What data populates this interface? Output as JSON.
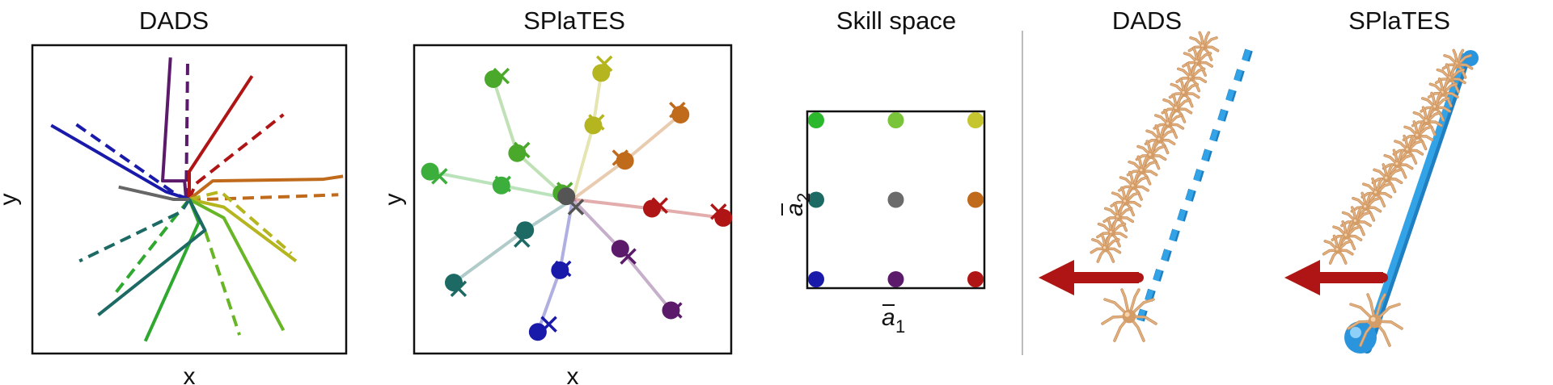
{
  "panels": [
    {
      "title": "DADS",
      "xlabel": "x",
      "ylabel": "y",
      "chart_data": {
        "type": "line",
        "title": "DADS",
        "xlabel": "x",
        "ylabel": "y",
        "xlim": [
          -1,
          1
        ],
        "ylim": [
          -1,
          1
        ],
        "series": [
          {
            "color": "#5c1a6b",
            "style": "solid",
            "points": [
              [
                -0.02,
                0
              ],
              [
                -0.03,
                0.12
              ],
              [
                -0.17,
                0.12
              ],
              [
                -0.12,
                0.92
              ]
            ]
          },
          {
            "color": "#5c1a6b",
            "style": "dashed",
            "points": [
              [
                -0.02,
                0
              ],
              [
                -0.01,
                0.92
              ]
            ]
          },
          {
            "color": "#b01515",
            "style": "solid",
            "points": [
              [
                0,
                0
              ],
              [
                0,
                0.18
              ],
              [
                0.4,
                0.8
              ]
            ]
          },
          {
            "color": "#b01515",
            "style": "dashed",
            "points": [
              [
                0,
                0
              ],
              [
                0.04,
                0.1
              ],
              [
                0.6,
                0.55
              ]
            ]
          },
          {
            "color": "#c06a1c",
            "style": "solid",
            "points": [
              [
                0,
                0
              ],
              [
                0.15,
                0.12
              ],
              [
                0.85,
                0.13
              ],
              [
                0.98,
                0.15
              ]
            ]
          },
          {
            "color": "#c06a1c",
            "style": "dashed",
            "points": [
              [
                0,
                0
              ],
              [
                0.1,
                0
              ],
              [
                0.7,
                0.02
              ],
              [
                0.95,
                0.03
              ]
            ]
          },
          {
            "color": "#b5b520",
            "style": "solid",
            "points": [
              [
                0,
                0
              ],
              [
                0.22,
                -0.05
              ],
              [
                0.68,
                -0.4
              ]
            ]
          },
          {
            "color": "#b5b520",
            "style": "dashed",
            "points": [
              [
                0,
                0
              ],
              [
                0.2,
                0.05
              ],
              [
                0.65,
                -0.35
              ]
            ]
          },
          {
            "color": "#68b525",
            "style": "solid",
            "points": [
              [
                0,
                0
              ],
              [
                0.22,
                -0.12
              ],
              [
                0.6,
                -0.85
              ]
            ]
          },
          {
            "color": "#68b525",
            "style": "dashed",
            "points": [
              [
                0,
                0
              ],
              [
                0.1,
                -0.2
              ],
              [
                0.32,
                -0.88
              ]
            ]
          },
          {
            "color": "#2fa82f",
            "style": "solid",
            "points": [
              [
                0,
                0
              ],
              [
                0.06,
                -0.15
              ],
              [
                -0.28,
                -0.92
              ]
            ]
          },
          {
            "color": "#2fa82f",
            "style": "dashed",
            "points": [
              [
                0,
                0
              ],
              [
                -0.08,
                -0.1
              ],
              [
                -0.48,
                -0.62
              ]
            ]
          },
          {
            "color": "#1d6a64",
            "style": "solid",
            "points": [
              [
                0,
                0
              ],
              [
                0.1,
                -0.2
              ],
              [
                -0.58,
                -0.75
              ]
            ]
          },
          {
            "color": "#1d6a64",
            "style": "dashed",
            "points": [
              [
                0,
                0
              ],
              [
                -0.05,
                -0.08
              ],
              [
                -0.7,
                -0.4
              ]
            ]
          },
          {
            "color": "#1a1aaa",
            "style": "solid",
            "points": [
              [
                0,
                0
              ],
              [
                -0.15,
                0.05
              ],
              [
                -0.88,
                0.48
              ]
            ]
          },
          {
            "color": "#1a1aaa",
            "style": "dashed",
            "points": [
              [
                0,
                0
              ],
              [
                -0.08,
                0.03
              ],
              [
                -0.74,
                0.5
              ]
            ]
          },
          {
            "color": "#666666",
            "style": "solid",
            "points": [
              [
                0,
                0
              ],
              [
                -0.1,
                0
              ],
              [
                -0.45,
                0.08
              ]
            ]
          }
        ]
      }
    },
    {
      "title": "SPlaTES",
      "xlabel": "x",
      "ylabel": "y",
      "chart_data": {
        "type": "scatter",
        "title": "SPlaTES",
        "xlabel": "x",
        "ylabel": "y",
        "xlim": [
          -1,
          1
        ],
        "ylim": [
          -1,
          1
        ],
        "series": [
          {
            "color": "#4aa82a",
            "dots": [
              [
                -0.5,
                0.78
              ],
              [
                -0.35,
                0.3
              ],
              [
                -0.07,
                0.04
              ]
            ],
            "crosses": [
              [
                -0.45,
                0.8
              ],
              [
                -0.32,
                0.32
              ],
              [
                -0.05,
                0.06
              ]
            ]
          },
          {
            "color": "#b5b520",
            "dots": [
              [
                0.18,
                0.82
              ],
              [
                0.13,
                0.48
              ]
            ],
            "crosses": [
              [
                0.2,
                0.88
              ],
              [
                0.15,
                0.5
              ]
            ]
          },
          {
            "color": "#c06a1c",
            "dots": [
              [
                0.68,
                0.55
              ],
              [
                0.33,
                0.25
              ]
            ],
            "crosses": [
              [
                0.66,
                0.58
              ],
              [
                0.3,
                0.27
              ]
            ]
          },
          {
            "color": "#b01515",
            "dots": [
              [
                0.95,
                -0.12
              ],
              [
                0.5,
                -0.06
              ]
            ],
            "crosses": [
              [
                0.92,
                -0.08
              ],
              [
                0.55,
                -0.04
              ]
            ]
          },
          {
            "color": "#5c1a6b",
            "dots": [
              [
                0.62,
                -0.72
              ],
              [
                0.3,
                -0.32
              ]
            ],
            "crosses": [
              [
                0.64,
                -0.72
              ],
              [
                0.35,
                -0.37
              ]
            ]
          },
          {
            "color": "#1a1aaa",
            "dots": [
              [
                -0.22,
                -0.86
              ],
              [
                -0.08,
                -0.46
              ]
            ],
            "crosses": [
              [
                -0.15,
                -0.81
              ],
              [
                -0.06,
                -0.45
              ]
            ]
          },
          {
            "color": "#1d6a64",
            "dots": [
              [
                -0.75,
                -0.54
              ],
              [
                -0.3,
                -0.2
              ]
            ],
            "crosses": [
              [
                -0.72,
                -0.58
              ],
              [
                -0.32,
                -0.26
              ]
            ]
          },
          {
            "color": "#3cae3c",
            "dots": [
              [
                -0.9,
                0.18
              ],
              [
                -0.45,
                0.09
              ]
            ],
            "crosses": [
              [
                -0.84,
                0.15
              ],
              [
                -0.44,
                0.1
              ]
            ]
          },
          {
            "color": "#555555",
            "dots": [
              [
                -0.04,
                0.02
              ]
            ],
            "crosses": [
              [
                0.02,
                -0.05
              ]
            ]
          }
        ]
      }
    },
    {
      "title": "Skill space",
      "xlabel": "1",
      "ylabel": "2",
      "chart_data": {
        "type": "scatter",
        "title": "Skill space",
        "xlim": [
          -1,
          1
        ],
        "ylim": [
          -1,
          1
        ],
        "points": [
          {
            "x": -1,
            "y": 1,
            "color": "#2cb82c"
          },
          {
            "x": 0,
            "y": 1,
            "color": "#7ac43a"
          },
          {
            "x": 1,
            "y": 1,
            "color": "#c5c530"
          },
          {
            "x": -1,
            "y": 0,
            "color": "#1d6a64"
          },
          {
            "x": 0,
            "y": 0,
            "color": "#6b6b6b"
          },
          {
            "x": 1,
            "y": 0,
            "color": "#c06a1c"
          },
          {
            "x": -1,
            "y": -1,
            "color": "#1a1aaa"
          },
          {
            "x": 0,
            "y": -1,
            "color": "#5c1a6b"
          },
          {
            "x": 1,
            "y": -1,
            "color": "#b01515"
          }
        ]
      }
    },
    {
      "title": "DADS",
      "image": "ant-robot-dads-rollout"
    },
    {
      "title": "SPlaTES",
      "image": "ant-robot-splates-rollout"
    }
  ],
  "colors": {
    "arrow": "#b01515",
    "trail": "#33a3e8",
    "ant": "#e2b07e",
    "divider": "#bbbbbb"
  }
}
